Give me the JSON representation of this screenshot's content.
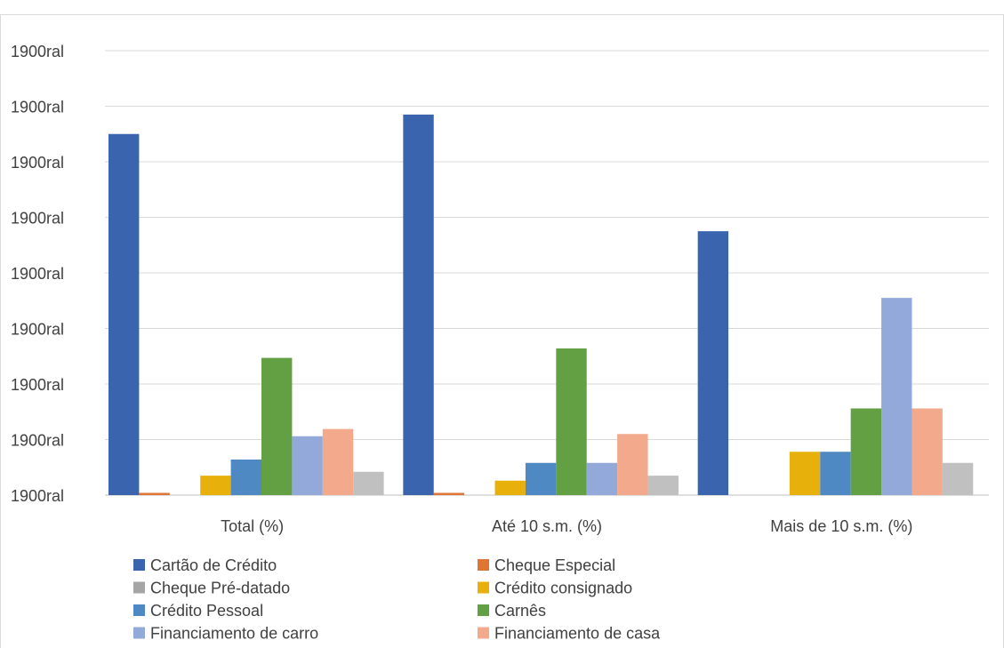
{
  "chart_data": {
    "type": "bar",
    "title": "",
    "xlabel": "",
    "ylabel": "",
    "categories": [
      "Total (%)",
      "Até 10 s.m. (%)",
      "Mais de 10 s.m. (%)"
    ],
    "y_tick_labels": [
      "1900ral",
      "1900ral",
      "1900ral",
      "1900ral",
      "1900ral",
      "1900ral",
      "1900ral",
      "1900ral",
      "1900ral"
    ],
    "ylim": [
      0,
      80
    ],
    "grid": true,
    "legend_position": "bottom-left",
    "series": [
      {
        "name": "Cartão de Crédito",
        "color": "#3a64ad",
        "values": [
          65,
          68.5,
          47.5
        ]
      },
      {
        "name": "Cheque Especial",
        "color": "#df7434",
        "values": [
          0.4,
          0.4,
          0
        ]
      },
      {
        "name": "Cheque Pré-datado",
        "color": "#a5a5a5",
        "values": [
          0,
          0,
          0
        ]
      },
      {
        "name": "Crédito consignado",
        "color": "#e8b00a",
        "values": [
          3.5,
          2.6,
          7.8
        ]
      },
      {
        "name": "Crédito Pessoal",
        "color": "#4e89c3",
        "values": [
          6.4,
          5.8,
          7.8
        ]
      },
      {
        "name": "Carnês",
        "color": "#62a043",
        "values": [
          24.7,
          26.4,
          15.6
        ]
      },
      {
        "name": "Financiamento de carro",
        "color": "#92a9d9",
        "values": [
          10.6,
          5.8,
          35.5
        ]
      },
      {
        "name": "Financiamento de casa",
        "color": "#f2a98c",
        "values": [
          11.9,
          11,
          15.6
        ]
      },
      {
        "name": "",
        "color": "#c0c0c0",
        "values": [
          4.2,
          3.5,
          5.8
        ]
      }
    ]
  }
}
